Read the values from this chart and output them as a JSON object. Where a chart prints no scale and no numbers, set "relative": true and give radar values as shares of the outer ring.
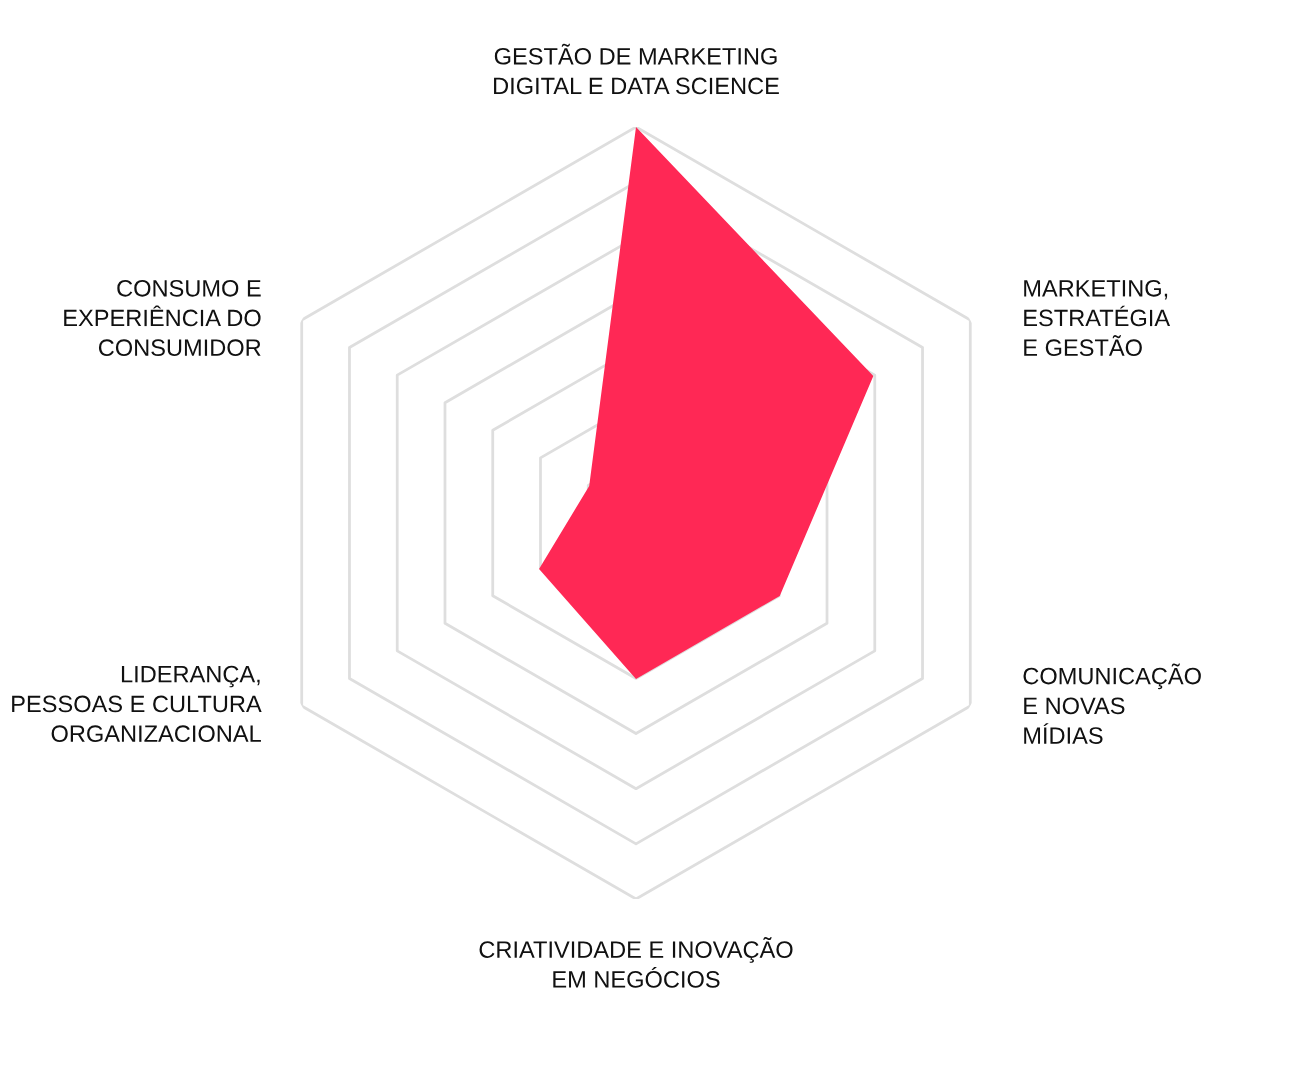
{
  "chart_data": {
    "type": "radar",
    "relative": true,
    "grid": true,
    "categories": [
      "GESTÃO DE MARKETING\nDIGITAL E DATA SCIENCE",
      "MARKETING,\nESTRATÉGIA\nE GESTÃO",
      "COMUNICAÇÃO\nE NOVAS\nMÍDIAS",
      "CRIATIVIDADE E INOVAÇÃO\nEM NEGÓCIOS",
      "LIDERANÇA,\nPESSOAS E CULTURA\nORGANIZACIONAL",
      "CONSUMO E\nEXPERIÊNCIA DO\nCONSUMIDOR"
    ],
    "series": [
      {
        "color": "#ff2855",
        "values": [
          1.0,
          0.71,
          0.43,
          0.43,
          0.29,
          0.14
        ]
      }
    ]
  }
}
